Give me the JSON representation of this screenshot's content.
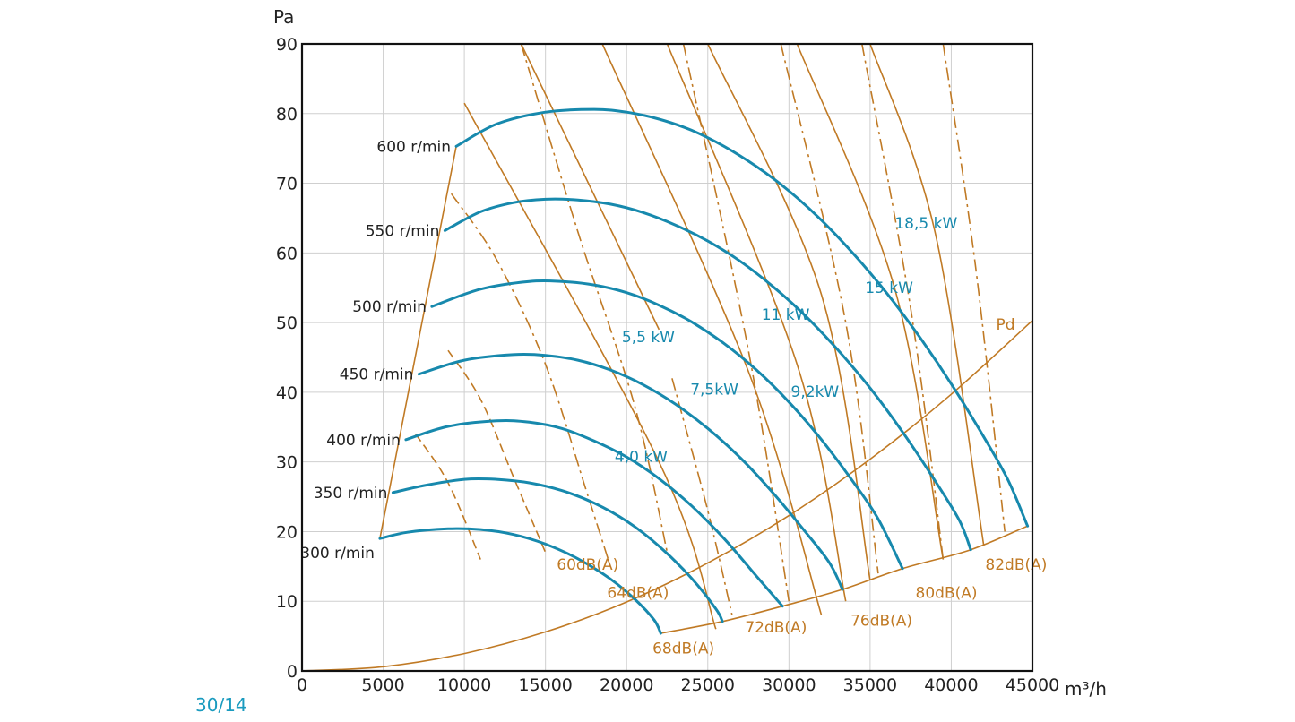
{
  "page_code": "30/14",
  "colors": {
    "fan_curve": "#1789ad",
    "auxiliary": "#c07a25",
    "grid": "#cfcfcf",
    "frame": "#111111",
    "text": "#222222"
  },
  "chart_data": {
    "type": "line",
    "xlabel": "m³/h",
    "ylabel": "Pa",
    "xlim": [
      0,
      45000
    ],
    "ylim": [
      0,
      90
    ],
    "x_ticks": [
      "0",
      "5000",
      "10000",
      "15000",
      "20000",
      "25000",
      "30000",
      "35000",
      "40000",
      "45000"
    ],
    "y_ticks": [
      "0",
      "10",
      "20",
      "30",
      "40",
      "50",
      "60",
      "70",
      "80",
      "90"
    ],
    "grid": true,
    "speed_curves": [
      {
        "label": "300 r/min",
        "points": [
          [
            4800,
            19
          ],
          [
            6500,
            19.9
          ],
          [
            9000,
            20.4
          ],
          [
            11000,
            20.3
          ],
          [
            13000,
            19.6
          ],
          [
            15000,
            18.2
          ],
          [
            17000,
            16.1
          ],
          [
            19000,
            13.2
          ],
          [
            20500,
            10.3
          ],
          [
            21700,
            7.3
          ],
          [
            22100,
            5.4
          ]
        ]
      },
      {
        "label": "350 r/min",
        "points": [
          [
            5600,
            25.6
          ],
          [
            7500,
            26.6
          ],
          [
            10000,
            27.5
          ],
          [
            12000,
            27.5
          ],
          [
            14000,
            27
          ],
          [
            16000,
            25.9
          ],
          [
            18000,
            24.1
          ],
          [
            20000,
            21.5
          ],
          [
            22000,
            17.9
          ],
          [
            24000,
            13.3
          ],
          [
            25500,
            8.9
          ],
          [
            25900,
            7.1
          ]
        ]
      },
      {
        "label": "400 r/min",
        "points": [
          [
            6400,
            33.2
          ],
          [
            9000,
            35.1
          ],
          [
            12000,
            35.9
          ],
          [
            14000,
            35.7
          ],
          [
            16000,
            34.8
          ],
          [
            18000,
            33
          ],
          [
            20000,
            30.7
          ],
          [
            22000,
            27.6
          ],
          [
            24000,
            23.7
          ],
          [
            26000,
            19
          ],
          [
            28000,
            13.6
          ],
          [
            29600,
            9.3
          ]
        ]
      },
      {
        "label": "450 r/min",
        "points": [
          [
            7200,
            42.6
          ],
          [
            10000,
            44.6
          ],
          [
            13000,
            45.4
          ],
          [
            15000,
            45.3
          ],
          [
            17000,
            44.6
          ],
          [
            19000,
            43.2
          ],
          [
            21000,
            41.1
          ],
          [
            23000,
            38.3
          ],
          [
            25000,
            34.8
          ],
          [
            27000,
            30.6
          ],
          [
            29000,
            25.6
          ],
          [
            31000,
            20
          ],
          [
            32500,
            15.5
          ],
          [
            33300,
            11.7
          ]
        ]
      },
      {
        "label": "500 r/min",
        "points": [
          [
            8000,
            52.3
          ],
          [
            11000,
            54.8
          ],
          [
            14000,
            55.9
          ],
          [
            16000,
            55.9
          ],
          [
            18000,
            55.4
          ],
          [
            20000,
            54.3
          ],
          [
            22000,
            52.5
          ],
          [
            24000,
            50.1
          ],
          [
            26000,
            47
          ],
          [
            28000,
            43.2
          ],
          [
            30000,
            38.6
          ],
          [
            32000,
            33.2
          ],
          [
            34000,
            27
          ],
          [
            35500,
            21.8
          ],
          [
            37000,
            14.7
          ]
        ]
      },
      {
        "label": "550 r/min",
        "points": [
          [
            8800,
            63.2
          ],
          [
            11000,
            65.9
          ],
          [
            13000,
            67.2
          ],
          [
            15000,
            67.7
          ],
          [
            17000,
            67.6
          ],
          [
            19000,
            67
          ],
          [
            21000,
            65.8
          ],
          [
            23000,
            64
          ],
          [
            25000,
            61.7
          ],
          [
            27000,
            58.8
          ],
          [
            29000,
            55.2
          ],
          [
            31000,
            51
          ],
          [
            33000,
            46.1
          ],
          [
            35000,
            40.6
          ],
          [
            37000,
            34.3
          ],
          [
            39000,
            27.3
          ],
          [
            40500,
            21.6
          ],
          [
            41200,
            17.4
          ]
        ]
      },
      {
        "label": "600 r/min",
        "points": [
          [
            9500,
            75.3
          ],
          [
            12000,
            78.5
          ],
          [
            15000,
            80.2
          ],
          [
            18000,
            80.6
          ],
          [
            20000,
            80.2
          ],
          [
            22000,
            79.2
          ],
          [
            24000,
            77.6
          ],
          [
            26000,
            75.3
          ],
          [
            28000,
            72.4
          ],
          [
            30000,
            68.9
          ],
          [
            32000,
            64.7
          ],
          [
            34000,
            59.8
          ],
          [
            36000,
            54.3
          ],
          [
            38000,
            48.1
          ],
          [
            40000,
            41.2
          ],
          [
            42000,
            33.6
          ],
          [
            43500,
            27.4
          ],
          [
            44700,
            20.8
          ]
        ]
      }
    ],
    "speed_limit_line": [
      [
        4800,
        19
      ],
      [
        9500,
        75.3
      ]
    ],
    "system_line_Pd": {
      "label": "Pd",
      "points": [
        [
          0,
          0
        ],
        [
          5000,
          0.6
        ],
        [
          10000,
          2.5
        ],
        [
          15000,
          5.6
        ],
        [
          20000,
          9.9
        ],
        [
          25000,
          15.5
        ],
        [
          30000,
          22.3
        ],
        [
          35000,
          30.4
        ],
        [
          40000,
          39.7
        ],
        [
          45000,
          50.3
        ]
      ]
    },
    "operating_limit_line": [
      [
        22100,
        5.4
      ],
      [
        25900,
        7.1
      ],
      [
        29600,
        9.3
      ],
      [
        33300,
        11.7
      ],
      [
        37000,
        14.7
      ],
      [
        41200,
        17.4
      ],
      [
        44700,
        20.8
      ]
    ],
    "power_lines": [
      {
        "label": "4,0 kW",
        "points": [
          [
            10000,
            81.5
          ],
          [
            22000,
            30
          ],
          [
            25500,
            6
          ]
        ]
      },
      {
        "label": "5,5 kW",
        "points": [
          [
            13500,
            90
          ],
          [
            22000,
            49
          ]
        ]
      },
      {
        "label": "7,5kW",
        "points": [
          [
            18500,
            90
          ],
          [
            27500,
            43
          ],
          [
            32000,
            8
          ]
        ]
      },
      {
        "label": "9,2kW",
        "points": [
          [
            22500,
            90
          ],
          [
            30500,
            44
          ],
          [
            33500,
            10
          ]
        ]
      },
      {
        "label": "11 kW",
        "points": [
          [
            25000,
            90
          ],
          [
            32000,
            54
          ],
          [
            35000,
            13
          ]
        ]
      },
      {
        "label": "15 kW",
        "points": [
          [
            30500,
            90
          ],
          [
            36500,
            55
          ],
          [
            39500,
            16
          ]
        ]
      },
      {
        "label": "18,5 kW",
        "points": [
          [
            35000,
            90
          ],
          [
            39000,
            63
          ],
          [
            42000,
            18
          ]
        ]
      }
    ],
    "noise_lines": [
      {
        "label": "60dB(A)",
        "points": [
          [
            9200,
            68.5
          ],
          [
            12000,
            59
          ],
          [
            15000,
            44
          ],
          [
            17500,
            26
          ],
          [
            19000,
            15
          ]
        ]
      },
      {
        "label": "64dB(A)",
        "points": [
          [
            13500,
            90
          ],
          [
            17000,
            63
          ],
          [
            20500,
            38
          ],
          [
            22500,
            17
          ]
        ]
      },
      {
        "label": "68dB(A)",
        "points": [
          [
            22800,
            42
          ],
          [
            25000,
            23
          ],
          [
            26500,
            8
          ]
        ]
      },
      {
        "label": "72dB(A)",
        "points": [
          [
            23500,
            90
          ],
          [
            27500,
            46
          ],
          [
            30000,
            10
          ]
        ]
      },
      {
        "label": "76dB(A)",
        "points": [
          [
            29500,
            90
          ],
          [
            33500,
            50
          ],
          [
            35500,
            14
          ]
        ]
      },
      {
        "label": "80dB(A)",
        "points": [
          [
            34500,
            90
          ],
          [
            37500,
            52
          ],
          [
            39500,
            16
          ]
        ]
      },
      {
        "label": "82dB(A)",
        "points": [
          [
            39500,
            90
          ],
          [
            41500,
            58
          ],
          [
            43300,
            20
          ]
        ]
      }
    ],
    "noise_ticks_low": [
      {
        "points": [
          [
            9000,
            46
          ],
          [
            11000,
            39
          ],
          [
            13000,
            28
          ],
          [
            15000,
            17
          ]
        ]
      },
      {
        "points": [
          [
            7000,
            34
          ],
          [
            9000,
            27
          ],
          [
            11000,
            16
          ]
        ]
      }
    ]
  }
}
